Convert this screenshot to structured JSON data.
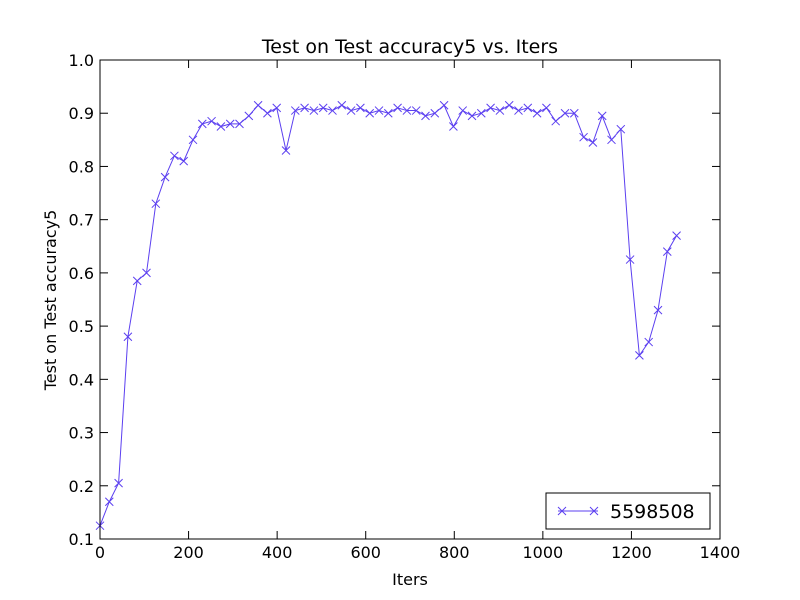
{
  "chart_data": {
    "type": "line",
    "title": "Test on Test accuracy5  vs. Iters",
    "x_label": "Iters",
    "y_label": "Test on Test accuracy5",
    "x": [
      0,
      21,
      42,
      63,
      84,
      105,
      126,
      147,
      168,
      189,
      210,
      231,
      252,
      273,
      294,
      315,
      336,
      357,
      378,
      399,
      420,
      441,
      462,
      483,
      504,
      525,
      546,
      567,
      588,
      609,
      630,
      651,
      672,
      693,
      714,
      735,
      756,
      777,
      798,
      819,
      840,
      861,
      882,
      903,
      924,
      945,
      966,
      987,
      1008,
      1029,
      1050,
      1071,
      1092,
      1113,
      1134,
      1155,
      1176,
      1197,
      1218,
      1239,
      1260,
      1281,
      1302
    ],
    "series": [
      {
        "name": "5598508",
        "color": "#5b3ff0",
        "marker": "x",
        "values": [
          0.125,
          0.17,
          0.205,
          0.48,
          0.585,
          0.6,
          0.73,
          0.78,
          0.82,
          0.81,
          0.85,
          0.88,
          0.885,
          0.875,
          0.88,
          0.88,
          0.895,
          0.915,
          0.9,
          0.91,
          0.83,
          0.905,
          0.91,
          0.905,
          0.91,
          0.905,
          0.915,
          0.905,
          0.91,
          0.9,
          0.905,
          0.9,
          0.91,
          0.905,
          0.905,
          0.895,
          0.9,
          0.915,
          0.875,
          0.905,
          0.895,
          0.9,
          0.91,
          0.905,
          0.915,
          0.905,
          0.91,
          0.9,
          0.91,
          0.885,
          0.9,
          0.9,
          0.855,
          0.845,
          0.895,
          0.85,
          0.87,
          0.625,
          0.445,
          0.47,
          0.53,
          0.64,
          0.67
        ]
      }
    ],
    "xlim": [
      0,
      1400
    ],
    "xticks": [
      0,
      200,
      400,
      600,
      800,
      1000,
      1200,
      1400
    ],
    "ylim": [
      0.1,
      1
    ],
    "yticks": [
      0.1,
      0.2,
      0.3,
      0.4,
      0.5,
      0.6,
      0.7,
      0.8,
      0.9,
      {
        "value": 1,
        "label": "1.0"
      }
    ],
    "grid": false,
    "legend": "lower right"
  }
}
